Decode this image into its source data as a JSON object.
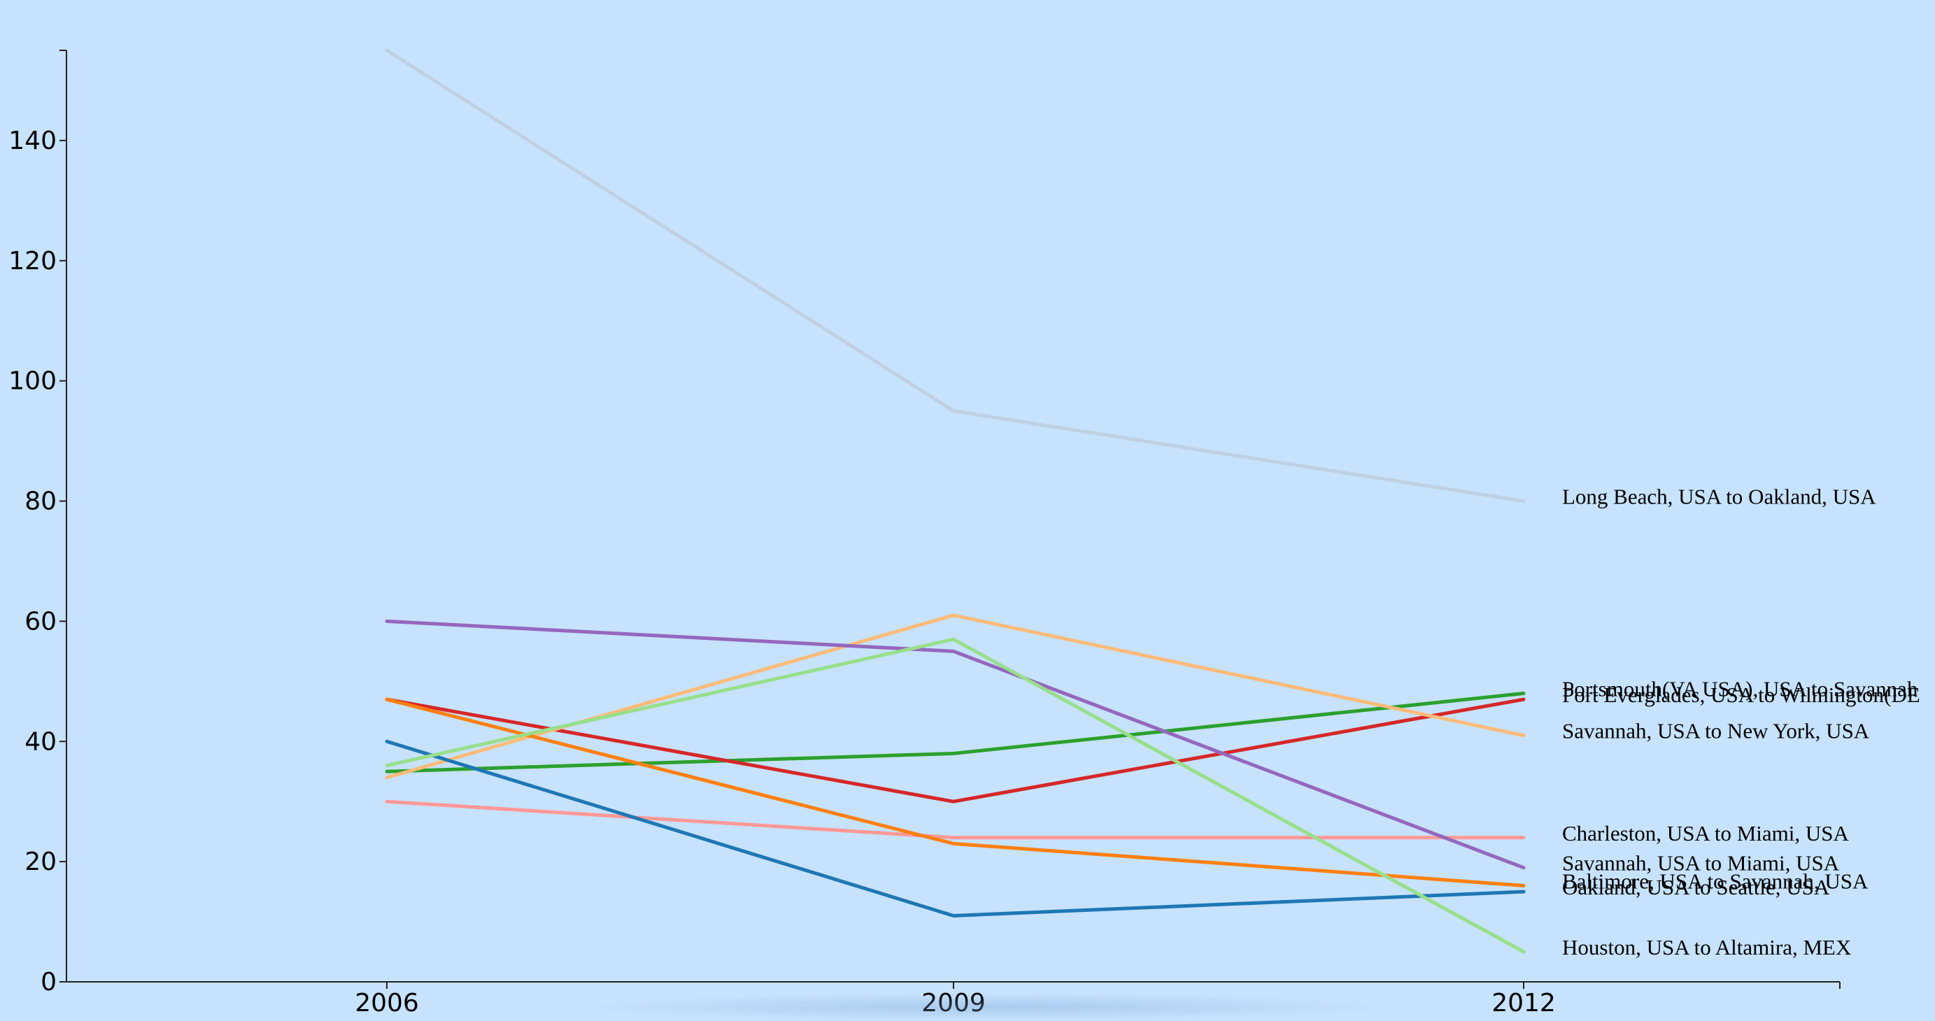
{
  "chart_data": {
    "type": "line",
    "title": "",
    "xlabel": "",
    "ylabel": "",
    "x": [
      2006,
      2009,
      2012
    ],
    "ylim": [
      0,
      155
    ],
    "yticks": [
      0,
      20,
      40,
      60,
      80,
      100,
      120,
      140
    ],
    "xticks": [
      2006,
      2009,
      2012
    ],
    "grid": false,
    "legend": "end-of-line labels",
    "series": [
      {
        "name": "Long Beach, USA to Oakland, USA",
        "color": "#c0d0e4",
        "values": [
          155,
          95,
          80
        ]
      },
      {
        "name": "Portsmouth(VA USA), USA to Savannah",
        "color": "#2ca02c",
        "values": [
          35,
          38,
          48
        ]
      },
      {
        "name": "Port Everglades, USA to Wilmington(DE",
        "color": "#d62728",
        "values": [
          47,
          30,
          47
        ]
      },
      {
        "name": "Savannah, USA to New York, USA",
        "color": "#ffbb78",
        "values": [
          34,
          61,
          41
        ]
      },
      {
        "name": "Charleston, USA to Miami, USA",
        "color": "#ff9896",
        "values": [
          30,
          24,
          24
        ]
      },
      {
        "name": "Savannah, USA to Miami, USA",
        "color": "#9467bd",
        "values": [
          60,
          55,
          19
        ]
      },
      {
        "name": "Baltimore, USA to Savannah, USA",
        "color": "#ff7f0e",
        "values": [
          47,
          23,
          16
        ]
      },
      {
        "name": "Oakland, USA to Seattle, USA",
        "color": "#1f77b4",
        "values": [
          40,
          11,
          15
        ]
      },
      {
        "name": "Houston, USA to Altamira, MEX",
        "color": "#98df8a",
        "values": [
          36,
          57,
          5
        ]
      }
    ]
  }
}
